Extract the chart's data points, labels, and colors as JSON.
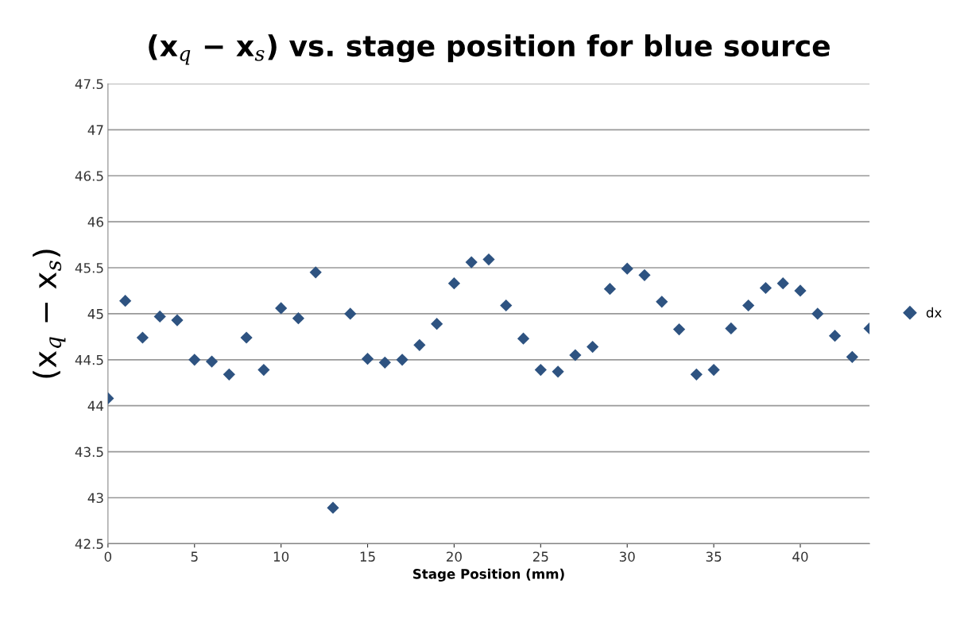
{
  "chart_data": {
    "type": "scatter",
    "title": "(x$_{q}$ − x$_{s}$) vs. stage position for blue source",
    "xlabel": "Stage Position (mm)",
    "ylabel": "(x$_{q}$ − x$_{s}$)",
    "x": [
      0,
      1,
      2,
      3,
      4,
      5,
      6,
      7,
      8,
      9,
      10,
      11,
      12,
      13,
      14,
      15,
      16,
      17,
      18,
      19,
      20,
      21,
      22,
      23,
      24,
      25,
      26,
      27,
      28,
      29,
      30,
      31,
      32,
      33,
      34,
      35,
      36,
      37,
      38,
      39,
      40,
      41,
      42,
      43,
      44
    ],
    "series": [
      {
        "name": "dx",
        "color": "#2e5381",
        "values": [
          44.08,
          45.14,
          44.74,
          44.97,
          44.93,
          44.5,
          44.48,
          44.34,
          44.74,
          44.39,
          45.06,
          44.95,
          45.45,
          42.89,
          45.0,
          44.51,
          44.47,
          44.5,
          44.66,
          44.89,
          45.33,
          45.56,
          45.59,
          45.09,
          44.73,
          44.39,
          44.37,
          44.55,
          44.64,
          45.27,
          45.49,
          45.42,
          45.13,
          44.83,
          44.34,
          44.39,
          44.84,
          45.09,
          45.28,
          45.33,
          45.25,
          45.0,
          44.76,
          44.53,
          44.84
        ]
      }
    ],
    "xlim": [
      0,
      44
    ],
    "xticks": [
      0,
      5,
      10,
      15,
      20,
      25,
      30,
      35,
      40
    ],
    "ylim": [
      42.5,
      47.5
    ],
    "yticks": [
      42.5,
      43,
      43.5,
      44,
      44.5,
      45,
      45.5,
      46,
      46.5,
      47,
      47.5
    ],
    "grid": "y",
    "legend": "right",
    "marker": "diamond"
  }
}
